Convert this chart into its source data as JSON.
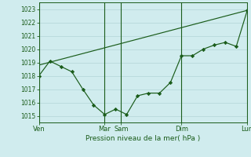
{
  "title": "",
  "xlabel": "Pression niveau de la mer( hPa )",
  "bg_color": "#d0ecee",
  "grid_color": "#b8d8da",
  "line_color": "#1a5c1a",
  "marker_color": "#1a5c1a",
  "ylim": [
    1014.5,
    1023.5
  ],
  "yticks": [
    1015,
    1016,
    1017,
    1018,
    1019,
    1020,
    1021,
    1022,
    1023
  ],
  "series1_x": [
    0,
    0.5,
    1.0,
    1.5,
    2.0,
    2.5,
    3.0,
    3.5,
    4.0,
    4.5,
    5.0,
    5.5,
    6.0,
    6.5,
    7.0,
    7.5,
    8.0,
    8.5,
    9.0,
    9.5
  ],
  "series1_y": [
    1018.0,
    1019.1,
    1018.7,
    1018.3,
    1017.0,
    1015.8,
    1015.1,
    1015.5,
    1015.1,
    1016.5,
    1016.7,
    1016.7,
    1017.5,
    1019.5,
    1019.5,
    1020.0,
    1020.3,
    1020.5,
    1020.2,
    1022.9
  ],
  "series2_x": [
    0,
    9.5
  ],
  "series2_y": [
    1018.8,
    1022.9
  ],
  "vlines_x": [
    0,
    3.0,
    3.75,
    6.5,
    9.5
  ],
  "xtick_positions": [
    0,
    3.0,
    3.75,
    6.5,
    9.5
  ],
  "xtick_labels": [
    "Ven",
    "Mar",
    "Sam",
    "Dim",
    "Lun"
  ],
  "figsize": [
    3.2,
    2.0
  ],
  "dpi": 100
}
